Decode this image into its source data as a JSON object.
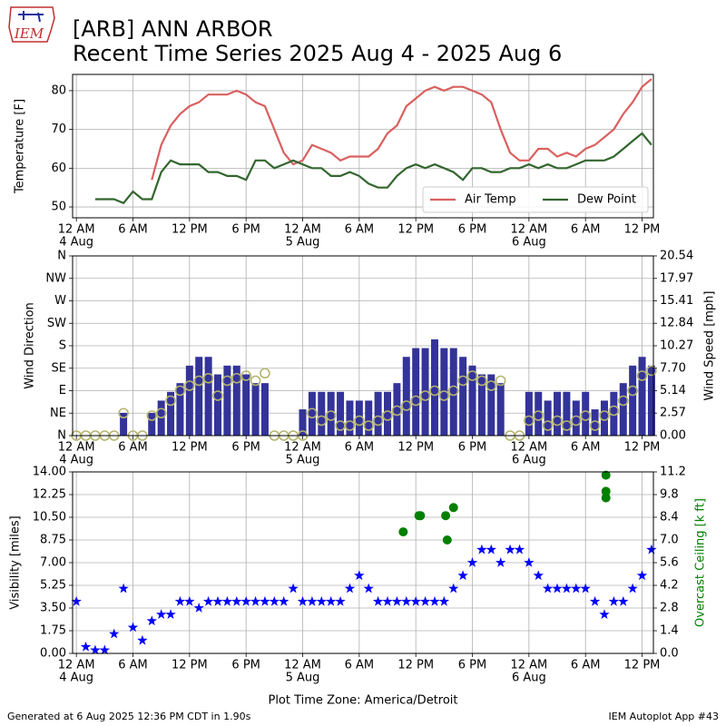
{
  "header": {
    "logo": "IEM",
    "title": "[ARB] ANN ARBOR",
    "subtitle": "Recent Time Series 2025 Aug 4 - 2025 Aug 6"
  },
  "footer": {
    "left": "Generated at 6 Aug 2025 12:36 PM CDT in 1.90s",
    "right": "IEM Autoplot App #43"
  },
  "chart_data": [
    {
      "type": "line",
      "ylabel": "Temperature [F]",
      "grid": true,
      "legend": "lower right",
      "legend_columns": 2,
      "xlim": [
        "2025-08-03T23:36",
        "2025-08-06T13:12"
      ],
      "xticks": [
        {
          "value": "2025-08-04T00:00",
          "label": "12 AM"
        },
        {
          "value": "2025-08-04T06:00",
          "label": "6 AM"
        },
        {
          "value": "2025-08-04T12:00",
          "label": "12 PM"
        },
        {
          "value": "2025-08-04T18:00",
          "label": "6 PM"
        },
        {
          "value": "2025-08-05T00:00",
          "label": "12 AM"
        },
        {
          "value": "2025-08-05T06:00",
          "label": "6 AM"
        },
        {
          "value": "2025-08-05T12:00",
          "label": "12 PM"
        },
        {
          "value": "2025-08-05T18:00",
          "label": "6 PM"
        },
        {
          "value": "2025-08-06T00:00",
          "label": "12 AM"
        },
        {
          "value": "2025-08-06T06:00",
          "label": "6 AM"
        },
        {
          "value": "2025-08-06T12:00",
          "label": "12 PM"
        }
      ],
      "xtick_dates": [
        {
          "value": "2025-08-04T00:00",
          "label": "4 Aug"
        },
        {
          "value": "2025-08-05T00:00",
          "label": "5 Aug"
        },
        {
          "value": "2025-08-06T00:00",
          "label": "6 Aug"
        }
      ],
      "ylim": [
        47.2,
        84.2
      ],
      "yticks": [
        50,
        60,
        70,
        80
      ],
      "x": [
        "2025-08-04T00:00",
        "2025-08-04T01:00",
        "2025-08-04T02:00",
        "2025-08-04T03:00",
        "2025-08-04T04:00",
        "2025-08-04T05:00",
        "2025-08-04T06:00",
        "2025-08-04T07:00",
        "2025-08-04T08:00",
        "2025-08-04T09:00",
        "2025-08-04T10:00",
        "2025-08-04T11:00",
        "2025-08-04T12:00",
        "2025-08-04T13:00",
        "2025-08-04T14:00",
        "2025-08-04T15:00",
        "2025-08-04T16:00",
        "2025-08-04T17:00",
        "2025-08-04T18:00",
        "2025-08-04T19:00",
        "2025-08-04T20:00",
        "2025-08-04T21:00",
        "2025-08-04T22:00",
        "2025-08-04T23:00",
        "2025-08-05T00:00",
        "2025-08-05T01:00",
        "2025-08-05T02:00",
        "2025-08-05T03:00",
        "2025-08-05T04:00",
        "2025-08-05T05:00",
        "2025-08-05T06:00",
        "2025-08-05T07:00",
        "2025-08-05T08:00",
        "2025-08-05T09:00",
        "2025-08-05T10:00",
        "2025-08-05T11:00",
        "2025-08-05T12:00",
        "2025-08-05T13:00",
        "2025-08-05T14:00",
        "2025-08-05T15:00",
        "2025-08-05T16:00",
        "2025-08-05T17:00",
        "2025-08-05T18:00",
        "2025-08-05T19:00",
        "2025-08-05T20:00",
        "2025-08-05T21:00",
        "2025-08-05T22:00",
        "2025-08-05T23:00",
        "2025-08-06T00:00",
        "2025-08-06T01:00",
        "2025-08-06T02:00",
        "2025-08-06T03:00",
        "2025-08-06T04:00",
        "2025-08-06T05:00",
        "2025-08-06T06:00",
        "2025-08-06T07:00",
        "2025-08-06T08:00",
        "2025-08-06T09:00",
        "2025-08-06T10:00",
        "2025-08-06T11:00",
        "2025-08-06T12:00",
        "2025-08-06T13:00"
      ],
      "series": [
        {
          "name": "Air Temp",
          "color": "#d9605f",
          "values": [
            null,
            null,
            null,
            null,
            null,
            null,
            null,
            null,
            57,
            66,
            71,
            74,
            76,
            77,
            79,
            79,
            79,
            80,
            79,
            77,
            76,
            70,
            64,
            61,
            62,
            66,
            65,
            64,
            62,
            63,
            63,
            63,
            65,
            69,
            71,
            76,
            78,
            80,
            81,
            80,
            81,
            81,
            80,
            79,
            77,
            70,
            64,
            62,
            62,
            65,
            65,
            63,
            64,
            63,
            65,
            66,
            68,
            70,
            74,
            77,
            81,
            83
          ]
        },
        {
          "name": "Dew Point",
          "color": "#33662f",
          "values": [
            null,
            null,
            52,
            52,
            52,
            51,
            54,
            52,
            52,
            59,
            62,
            61,
            61,
            61,
            59,
            59,
            58,
            58,
            57,
            62,
            62,
            60,
            61,
            62,
            61,
            60,
            60,
            58,
            58,
            59,
            58,
            56,
            55,
            55,
            58,
            60,
            61,
            60,
            61,
            60,
            59,
            57,
            60,
            60,
            59,
            59,
            60,
            60,
            61,
            60,
            61,
            60,
            60,
            61,
            62,
            62,
            62,
            63,
            65,
            67,
            69,
            66
          ]
        }
      ]
    },
    {
      "type": "bar",
      "ylabel": "Wind Direction",
      "y2label": "Wind Speed [mph]",
      "grid": true,
      "xlim": [
        "2025-08-03T23:36",
        "2025-08-06T13:12"
      ],
      "xticks": [
        {
          "value": "2025-08-04T00:00",
          "label": "12 AM"
        },
        {
          "value": "2025-08-04T06:00",
          "label": "6 AM"
        },
        {
          "value": "2025-08-04T12:00",
          "label": "12 PM"
        },
        {
          "value": "2025-08-04T18:00",
          "label": "6 PM"
        },
        {
          "value": "2025-08-05T00:00",
          "label": "12 AM"
        },
        {
          "value": "2025-08-05T06:00",
          "label": "6 AM"
        },
        {
          "value": "2025-08-05T12:00",
          "label": "12 PM"
        },
        {
          "value": "2025-08-05T18:00",
          "label": "6 PM"
        },
        {
          "value": "2025-08-06T00:00",
          "label": "12 AM"
        },
        {
          "value": "2025-08-06T06:00",
          "label": "6 AM"
        },
        {
          "value": "2025-08-06T12:00",
          "label": "12 PM"
        }
      ],
      "xtick_dates": [
        {
          "value": "2025-08-04T00:00",
          "label": "4 Aug"
        },
        {
          "value": "2025-08-05T00:00",
          "label": "5 Aug"
        },
        {
          "value": "2025-08-06T00:00",
          "label": "6 Aug"
        }
      ],
      "ylim": [
        0,
        360
      ],
      "yticks": [
        {
          "value": 0,
          "label": "N"
        },
        {
          "value": 45,
          "label": "NE"
        },
        {
          "value": 90,
          "label": "E"
        },
        {
          "value": 135,
          "label": "SE"
        },
        {
          "value": 180,
          "label": "S"
        },
        {
          "value": 225,
          "label": "SW"
        },
        {
          "value": 270,
          "label": "W"
        },
        {
          "value": 315,
          "label": "NW"
        },
        {
          "value": 360,
          "label": "N"
        }
      ],
      "y2lim": [
        0,
        20.54
      ],
      "y2ticks": [
        {
          "value": 0,
          "label": "0.00"
        },
        2.57,
        5.14,
        {
          "value": 7.7,
          "label": "7.70"
        },
        10.27,
        12.84,
        15.41,
        17.97,
        20.54
      ],
      "x": [
        "2025-08-04T00:00",
        "2025-08-04T01:00",
        "2025-08-04T02:00",
        "2025-08-04T03:00",
        "2025-08-04T04:00",
        "2025-08-04T05:00",
        "2025-08-04T06:00",
        "2025-08-04T07:00",
        "2025-08-04T08:00",
        "2025-08-04T09:00",
        "2025-08-04T10:00",
        "2025-08-04T11:00",
        "2025-08-04T12:00",
        "2025-08-04T13:00",
        "2025-08-04T14:00",
        "2025-08-04T15:00",
        "2025-08-04T16:00",
        "2025-08-04T17:00",
        "2025-08-04T18:00",
        "2025-08-04T19:00",
        "2025-08-04T20:00",
        "2025-08-04T21:00",
        "2025-08-04T22:00",
        "2025-08-04T23:00",
        "2025-08-05T00:00",
        "2025-08-05T01:00",
        "2025-08-05T02:00",
        "2025-08-05T03:00",
        "2025-08-05T04:00",
        "2025-08-05T05:00",
        "2025-08-05T06:00",
        "2025-08-05T07:00",
        "2025-08-05T08:00",
        "2025-08-05T09:00",
        "2025-08-05T10:00",
        "2025-08-05T11:00",
        "2025-08-05T12:00",
        "2025-08-05T13:00",
        "2025-08-05T14:00",
        "2025-08-05T15:00",
        "2025-08-05T16:00",
        "2025-08-05T17:00",
        "2025-08-05T18:00",
        "2025-08-05T19:00",
        "2025-08-05T20:00",
        "2025-08-05T21:00",
        "2025-08-05T22:00",
        "2025-08-05T23:00",
        "2025-08-06T00:00",
        "2025-08-06T01:00",
        "2025-08-06T02:00",
        "2025-08-06T03:00",
        "2025-08-06T04:00",
        "2025-08-06T05:00",
        "2025-08-06T06:00",
        "2025-08-06T07:00",
        "2025-08-06T08:00",
        "2025-08-06T09:00",
        "2025-08-06T10:00",
        "2025-08-06T11:00",
        "2025-08-06T12:00",
        "2025-08-06T13:00"
      ],
      "series": [
        {
          "type": "bar",
          "axis": "y2",
          "color": "#333399",
          "values": [
            0,
            0,
            0,
            0,
            0,
            2.6,
            0,
            0,
            2.6,
            4,
            5,
            6,
            8,
            9,
            9,
            7,
            8,
            8,
            7,
            6,
            6,
            0,
            0,
            0,
            3,
            5,
            5,
            5,
            5,
            4,
            4,
            4,
            5,
            5,
            6,
            9,
            10,
            10,
            11,
            10,
            10,
            9,
            8,
            7,
            7,
            6,
            0,
            0,
            5,
            5,
            4,
            5,
            5,
            4,
            5,
            3,
            4,
            5,
            6,
            8,
            9,
            8
          ]
        },
        {
          "type": "scatter",
          "marker": "circle-open",
          "color": "#b4b46e",
          "values": [
            0,
            0,
            0,
            0,
            0,
            45,
            0,
            0,
            40,
            45,
            70,
            90,
            100,
            110,
            115,
            80,
            110,
            115,
            120,
            110,
            125,
            0,
            0,
            0,
            0,
            45,
            30,
            40,
            20,
            20,
            30,
            20,
            30,
            40,
            50,
            60,
            70,
            80,
            90,
            80,
            90,
            110,
            120,
            110,
            100,
            110,
            0,
            0,
            30,
            40,
            20,
            30,
            20,
            30,
            40,
            20,
            40,
            50,
            70,
            90,
            120,
            130
          ]
        }
      ]
    },
    {
      "type": "scatter",
      "ylabel": "Visibility [miles]",
      "y2label": "Overcast Ceiling [k ft]",
      "y2label_color": "#008000",
      "xlabel": "Plot Time Zone: America/Detroit",
      "grid": true,
      "xlim": [
        "2025-08-03T23:36",
        "2025-08-06T13:12"
      ],
      "xticks": [
        {
          "value": "2025-08-04T00:00",
          "label": "12 AM"
        },
        {
          "value": "2025-08-04T06:00",
          "label": "6 AM"
        },
        {
          "value": "2025-08-04T12:00",
          "label": "12 PM"
        },
        {
          "value": "2025-08-04T18:00",
          "label": "6 PM"
        },
        {
          "value": "2025-08-05T00:00",
          "label": "12 AM"
        },
        {
          "value": "2025-08-05T06:00",
          "label": "6 AM"
        },
        {
          "value": "2025-08-05T12:00",
          "label": "12 PM"
        },
        {
          "value": "2025-08-05T18:00",
          "label": "6 PM"
        },
        {
          "value": "2025-08-06T00:00",
          "label": "12 AM"
        },
        {
          "value": "2025-08-06T06:00",
          "label": "6 AM"
        },
        {
          "value": "2025-08-06T12:00",
          "label": "12 PM"
        }
      ],
      "xtick_dates": [
        {
          "value": "2025-08-04T00:00",
          "label": "4 Aug"
        },
        {
          "value": "2025-08-05T00:00",
          "label": "5 Aug"
        },
        {
          "value": "2025-08-06T00:00",
          "label": "6 Aug"
        }
      ],
      "ylim": [
        0,
        14
      ],
      "yticks": [
        {
          "value": 0,
          "label": "0.00"
        },
        1.75,
        {
          "value": 3.5,
          "label": "3.50"
        },
        5.25,
        {
          "value": 7,
          "label": "7.00"
        },
        8.75,
        {
          "value": 10.5,
          "label": "10.50"
        },
        12.25,
        {
          "value": 14,
          "label": "14.00"
        }
      ],
      "y2lim": [
        0,
        11.2
      ],
      "y2ticks": [
        {
          "value": 0,
          "label": "0.0"
        },
        1.4,
        2.8,
        4.2,
        5.6,
        {
          "value": 7,
          "label": "7.0"
        },
        8.4,
        9.8,
        11.2
      ],
      "x": [
        "2025-08-04T00:00",
        "2025-08-04T01:00",
        "2025-08-04T02:00",
        "2025-08-04T03:00",
        "2025-08-04T04:00",
        "2025-08-04T05:00",
        "2025-08-04T06:00",
        "2025-08-04T07:00",
        "2025-08-04T08:00",
        "2025-08-04T09:00",
        "2025-08-04T10:00",
        "2025-08-04T11:00",
        "2025-08-04T12:00",
        "2025-08-04T13:00",
        "2025-08-04T14:00",
        "2025-08-04T15:00",
        "2025-08-04T16:00",
        "2025-08-04T17:00",
        "2025-08-04T18:00",
        "2025-08-04T19:00",
        "2025-08-04T20:00",
        "2025-08-04T21:00",
        "2025-08-04T22:00",
        "2025-08-04T23:00",
        "2025-08-05T00:00",
        "2025-08-05T01:00",
        "2025-08-05T02:00",
        "2025-08-05T03:00",
        "2025-08-05T04:00",
        "2025-08-05T05:00",
        "2025-08-05T06:00",
        "2025-08-05T07:00",
        "2025-08-05T08:00",
        "2025-08-05T09:00",
        "2025-08-05T10:00",
        "2025-08-05T11:00",
        "2025-08-05T12:00",
        "2025-08-05T13:00",
        "2025-08-05T14:00",
        "2025-08-05T15:00",
        "2025-08-05T16:00",
        "2025-08-05T17:00",
        "2025-08-05T18:00",
        "2025-08-05T19:00",
        "2025-08-05T20:00",
        "2025-08-05T21:00",
        "2025-08-05T22:00",
        "2025-08-05T23:00",
        "2025-08-06T00:00",
        "2025-08-06T01:00",
        "2025-08-06T02:00",
        "2025-08-06T03:00",
        "2025-08-06T04:00",
        "2025-08-06T05:00",
        "2025-08-06T06:00",
        "2025-08-06T07:00",
        "2025-08-06T08:00",
        "2025-08-06T09:00",
        "2025-08-06T10:00",
        "2025-08-06T11:00",
        "2025-08-06T12:00",
        "2025-08-06T13:00"
      ],
      "series": [
        {
          "type": "scatter",
          "marker": "star",
          "color": "#0000ff",
          "values": [
            4,
            0.5,
            0.25,
            0.25,
            1.5,
            5,
            2,
            1,
            2.5,
            3,
            3,
            4,
            4,
            3.5,
            4,
            4,
            4,
            4,
            4,
            4,
            4,
            4,
            4,
            5,
            4,
            4,
            4,
            4,
            4,
            5,
            6,
            5,
            4,
            4,
            4,
            4,
            4,
            4,
            4,
            4,
            5,
            6,
            7,
            8,
            8,
            7,
            8,
            8,
            7,
            6,
            5,
            5,
            5,
            5,
            5,
            4,
            3,
            4,
            4,
            5,
            6,
            8
          ]
        },
        {
          "type": "scatter",
          "marker": "circle",
          "axis": "y2",
          "color": "#008000",
          "x": [
            "2025-08-05T10:40",
            "2025-08-05T12:20",
            "2025-08-05T12:30",
            "2025-08-05T15:10",
            "2025-08-05T15:20",
            "2025-08-05T16:00",
            "2025-08-06T08:10",
            "2025-08-06T08:10",
            "2025-08-06T08:10"
          ],
          "values": [
            7.5,
            8.5,
            8.5,
            8.5,
            7.0,
            9.0,
            9.6,
            10.0,
            11.0
          ]
        }
      ]
    }
  ]
}
